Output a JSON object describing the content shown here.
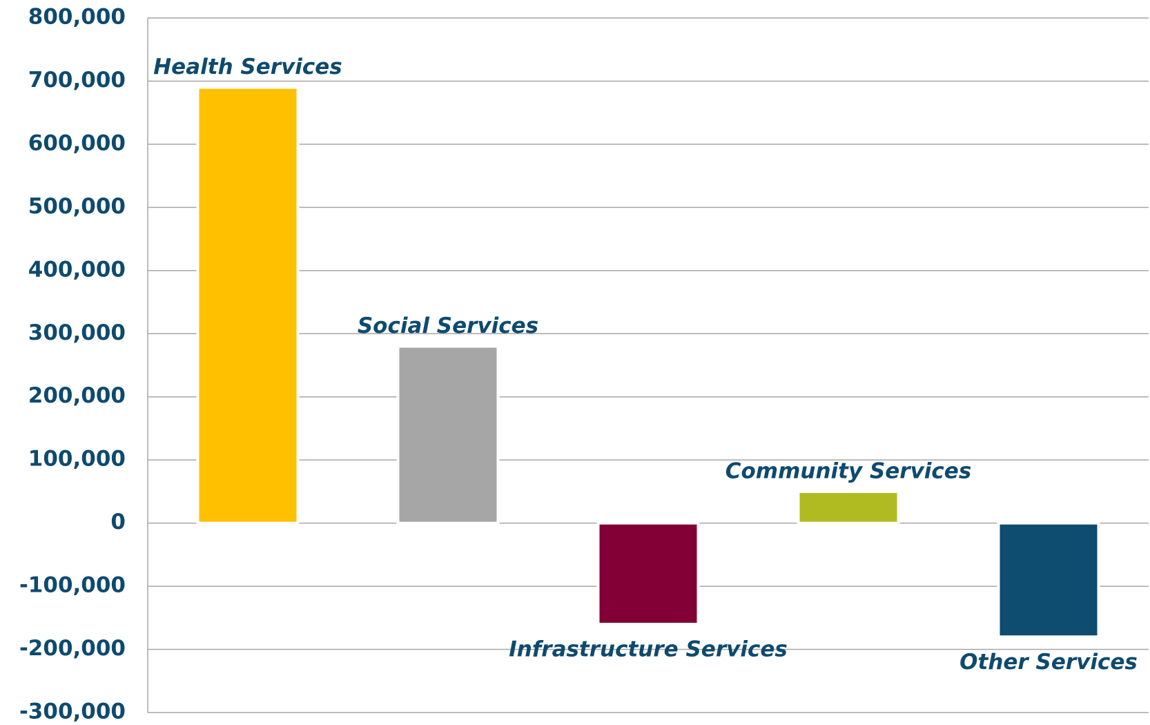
{
  "chart_data": {
    "type": "bar",
    "categories": [
      "Health Services",
      "Social Services",
      "Infrastructure Services",
      "Community Services",
      "Other Services"
    ],
    "values": [
      690000,
      280000,
      -160000,
      50000,
      -180000
    ],
    "colors": [
      "#ffc000",
      "#a6a6a6",
      "#820035",
      "#b0bb22",
      "#0e4c70"
    ],
    "ylim": [
      -300000,
      800000
    ],
    "yticks": [
      {
        "value": -300000,
        "label": "-300,000"
      },
      {
        "value": -200000,
        "label": "-200,000"
      },
      {
        "value": -100000,
        "label": "-100,000"
      },
      0,
      {
        "value": 100000,
        "label": "100,000"
      },
      {
        "value": 200000,
        "label": "200,000"
      },
      {
        "value": 300000,
        "label": "300,000"
      },
      {
        "value": 400000,
        "label": "400,000"
      },
      {
        "value": 500000,
        "label": "500,000"
      },
      {
        "value": 600000,
        "label": "600,000"
      },
      {
        "value": 700000,
        "label": "700,000"
      },
      {
        "value": 800000,
        "label": "800,000"
      }
    ],
    "grid": true
  }
}
